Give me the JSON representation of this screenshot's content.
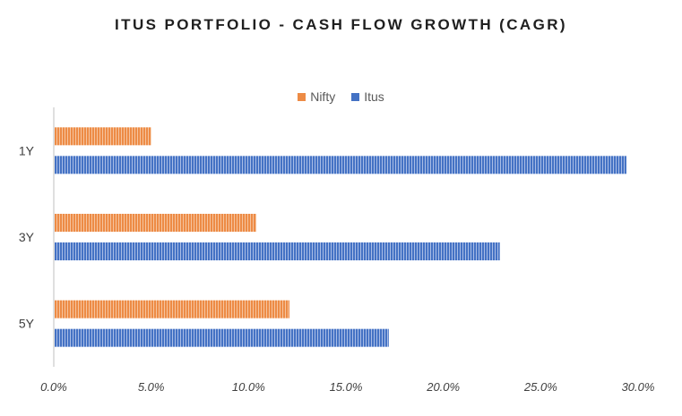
{
  "chart_data": {
    "type": "bar",
    "orientation": "horizontal",
    "title": "ITUS PORTFOLIO - CASH FLOW GROWTH (CAGR)",
    "categories": [
      "1Y",
      "3Y",
      "5Y"
    ],
    "series": [
      {
        "name": "Nifty",
        "color": "#ED8B45",
        "values": [
          5.0,
          10.4,
          12.1
        ]
      },
      {
        "name": "Itus",
        "color": "#4472C4",
        "values": [
          29.4,
          22.9,
          17.2
        ]
      }
    ],
    "xlim": [
      0,
      30
    ],
    "x_ticks": [
      "0.0%",
      "5.0%",
      "10.0%",
      "15.0%",
      "20.0%",
      "25.0%",
      "30.0%"
    ],
    "legend_position": "top",
    "grid": false
  }
}
